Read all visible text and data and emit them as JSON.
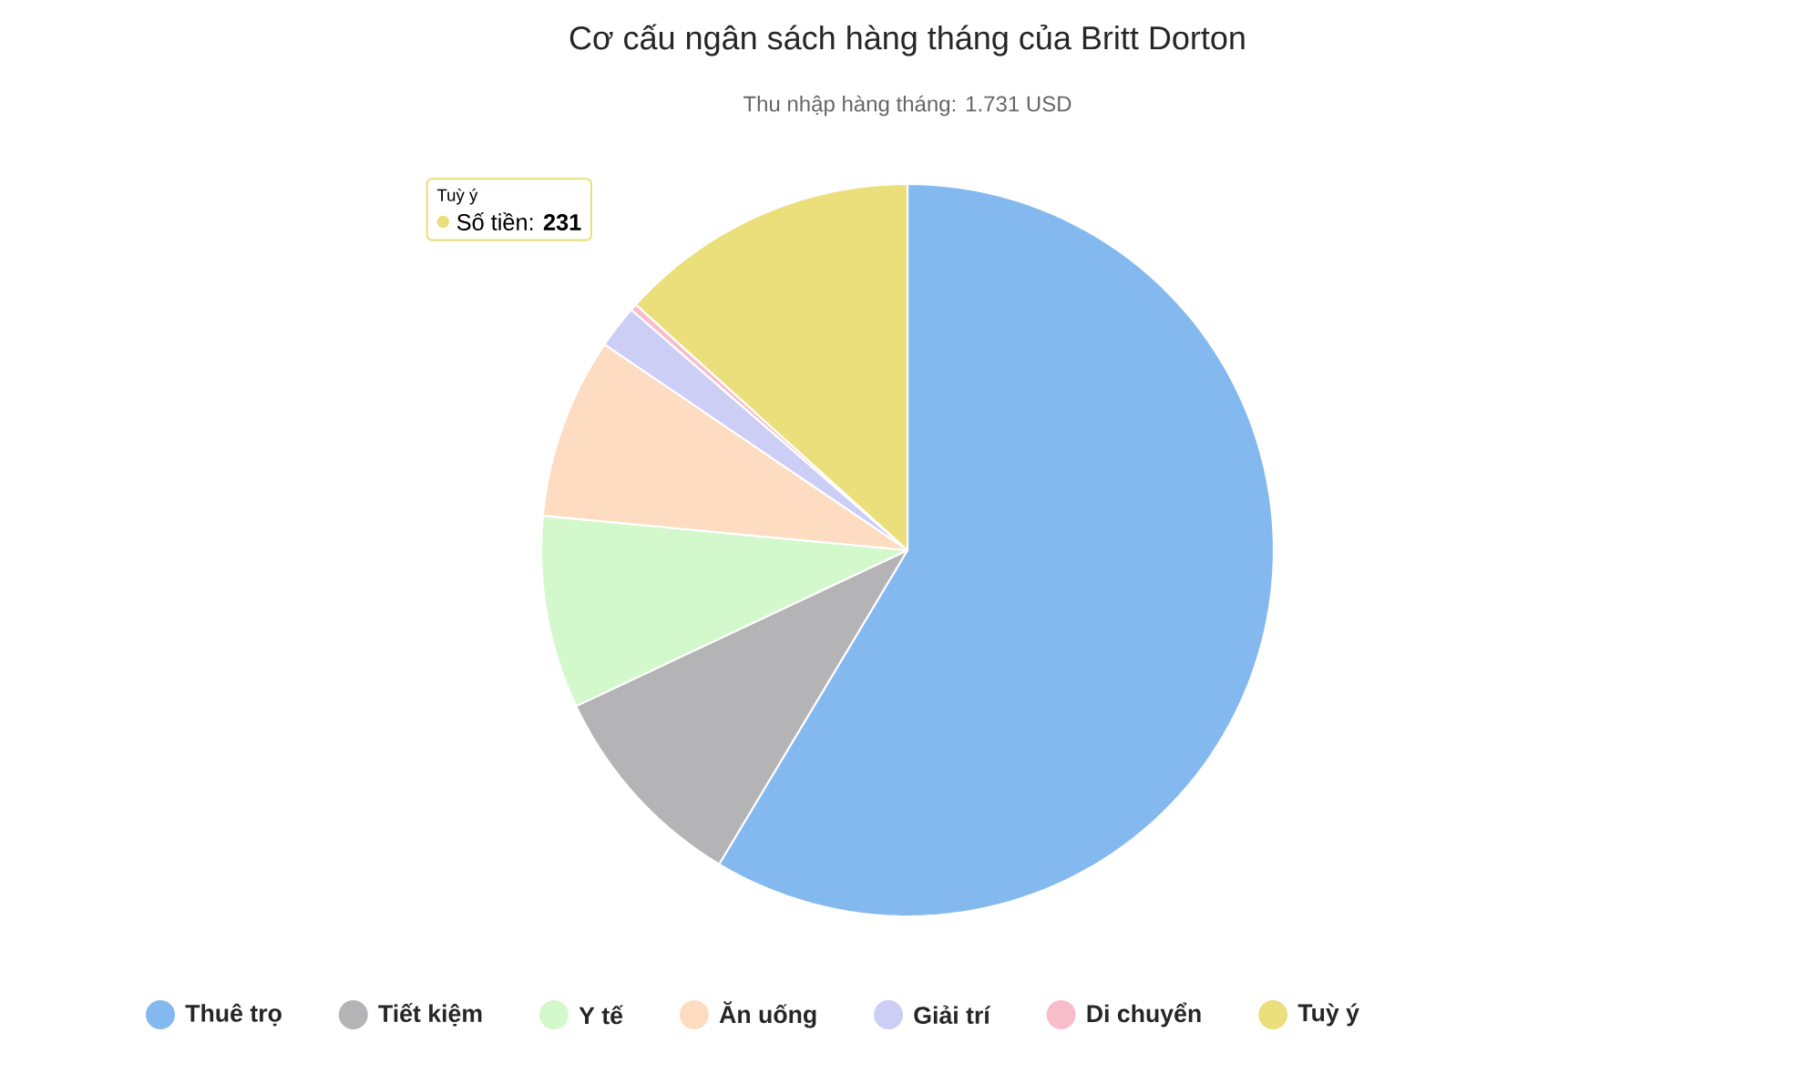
{
  "chart_data": {
    "type": "pie",
    "title": "Cơ cấu ngân sách hàng tháng của Britt Dorton",
    "subtitle": "Thu nhập hàng tháng: 1.731 USD",
    "categories": [
      "Thuê trọ",
      "Tiết kiệm",
      "Y tế",
      "Ăn uống",
      "Giải trí",
      "Di chuyển",
      "Tuỳ ý"
    ],
    "values": [
      58.6,
      9.4,
      8.5,
      8.0,
      1.9,
      0.3,
      13.3
    ],
    "colors": [
      "#84b9ef",
      "#b4b4b6",
      "#d3f8cc",
      "#fddcc2",
      "#cccef6",
      "#f8bdcb",
      "#ebdf7c"
    ],
    "legend": "bottom",
    "annotations": [
      "Tuỳ ý",
      "Số tiền: **231**"
    ]
  }
}
